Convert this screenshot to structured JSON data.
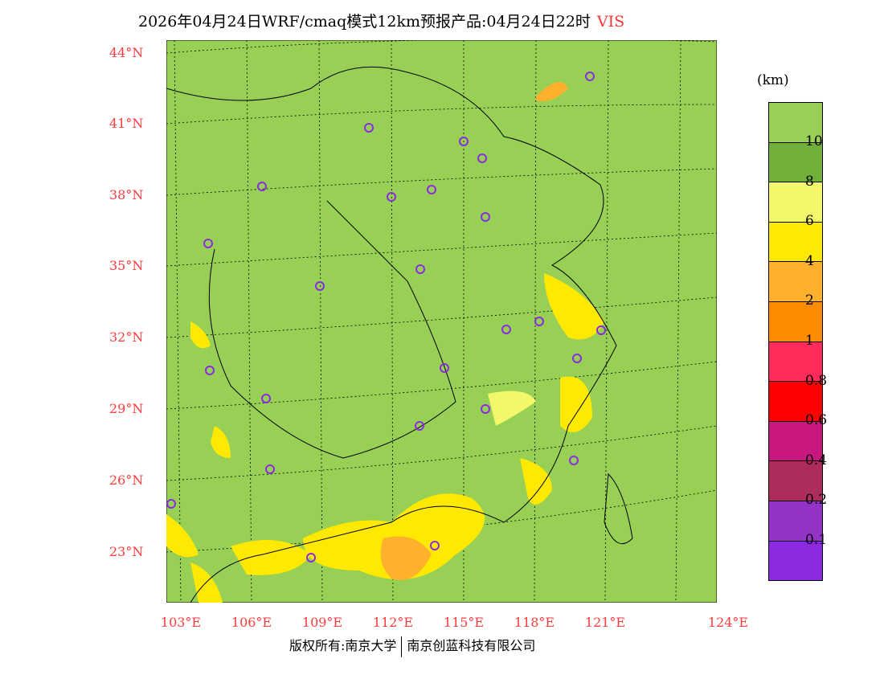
{
  "title": {
    "text": "2026年04月24日WRF/cmaq模式12km预报产品:04月24日22时",
    "variable": "VIS"
  },
  "lat_labels": [
    "44°N",
    "41°N",
    "38°N",
    "35°N",
    "32°N",
    "29°N",
    "26°N",
    "23°N"
  ],
  "lon_labels": [
    "103°E",
    "106°E",
    "109°E",
    "112°E",
    "115°E",
    "118°E",
    "121°E",
    "124°E"
  ],
  "legend": {
    "unit": "(km)",
    "colors": [
      "#97d055",
      "#6faf3a",
      "#f3f76a",
      "#ffe900",
      "#ffb12d",
      "#ff8b00",
      "#ff2b5a",
      "#ff0000",
      "#c8177e",
      "#ac2d5c",
      "#9433c8",
      "#8a2be2"
    ],
    "labels": [
      "10",
      "8",
      "6",
      "4",
      "2",
      "1",
      "0.8",
      "0.6",
      "0.4",
      "0.2",
      "0.1"
    ]
  },
  "copyright": {
    "left": "版权所有:南京大学",
    "right": "南京创蓝科技有限公司"
  }
}
